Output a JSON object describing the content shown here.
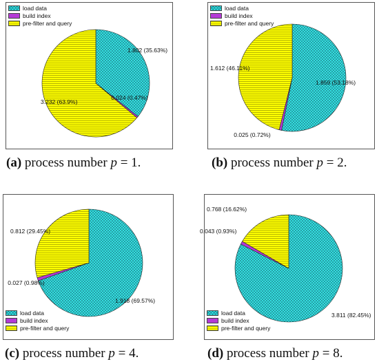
{
  "legend": [
    "load data",
    "build index",
    "pre-filter and query"
  ],
  "colors": {
    "load": "#33e0e0",
    "build": "#b43ad6",
    "pre": "#ffff00"
  },
  "chart_data": [
    {
      "type": "pie",
      "categories": [
        "load data",
        "build index",
        "pre-filter and query"
      ],
      "values": [
        1.802,
        0.024,
        3.232
      ],
      "data_labels": [
        "1.802 (35.63%)",
        "0.024 (0.47%)",
        "3.232 (63.9%)"
      ],
      "caption_tag": "(a)",
      "caption_text": " process number ",
      "caption_var": "p",
      "caption_end": " = 1."
    },
    {
      "type": "pie",
      "categories": [
        "load data",
        "build index",
        "pre-filter and query"
      ],
      "values": [
        1.859,
        0.025,
        1.612
      ],
      "data_labels": [
        "1.859 (53.18%)",
        "0.025 (0.72%)",
        "1.612 (46.11%)"
      ],
      "caption_tag": "(b)",
      "caption_text": " process number ",
      "caption_var": "p",
      "caption_end": " = 2."
    },
    {
      "type": "pie",
      "categories": [
        "load data",
        "build index",
        "pre-filter and query"
      ],
      "values": [
        1.918,
        0.027,
        0.812
      ],
      "data_labels": [
        "1.918 (69.57%)",
        "0.027 (0.98%)",
        "0.812 (29.45%)"
      ],
      "caption_tag": "(c)",
      "caption_text": " process number ",
      "caption_var": "p",
      "caption_end": " = 4."
    },
    {
      "type": "pie",
      "categories": [
        "load data",
        "build index",
        "pre-filter and query"
      ],
      "values": [
        3.811,
        0.043,
        0.768
      ],
      "data_labels": [
        "3.811 (82.45%)",
        "0.043 (0.93%)",
        "0.768 (16.62%)"
      ],
      "caption_tag": "(d)",
      "caption_text": " process number ",
      "caption_var": "p",
      "caption_end": " = 8."
    }
  ]
}
